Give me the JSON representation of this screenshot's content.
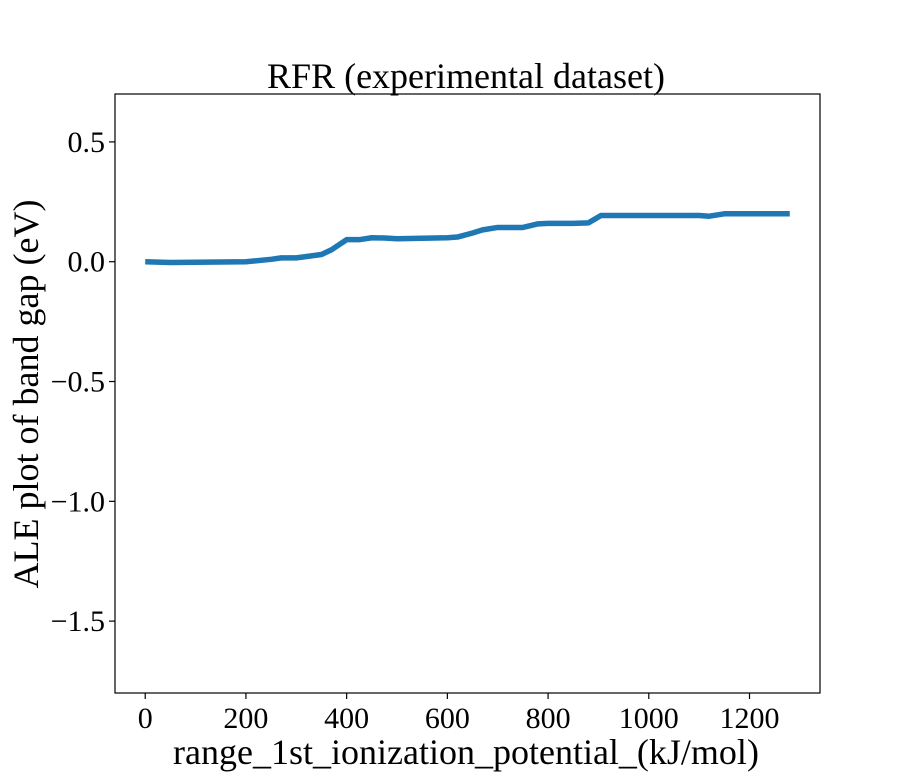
{
  "chart_data": {
    "type": "line",
    "title": "RFR (experimental dataset)",
    "xlabel": "range_1st_ionization_potential_(kJ/mol)",
    "ylabel": "ALE plot of band gap (eV)",
    "xlim": [
      -60,
      1340
    ],
    "ylim": [
      -1.8,
      0.7
    ],
    "x_ticks": [
      0,
      200,
      400,
      600,
      800,
      1000,
      1200
    ],
    "x_tick_labels": [
      "0",
      "200",
      "400",
      "600",
      "800",
      "1000",
      "1200"
    ],
    "y_ticks": [
      0.5,
      0.0,
      -0.5,
      -1.0,
      -1.5
    ],
    "y_tick_labels": [
      "0.5",
      "0.0",
      "−0.5",
      "−1.0",
      "−1.5"
    ],
    "grid": false,
    "series": [
      {
        "color": "#1f77b4",
        "x": [
          0,
          50,
          100,
          150,
          200,
          250,
          270,
          300,
          350,
          370,
          400,
          425,
          450,
          475,
          500,
          550,
          600,
          620,
          650,
          670,
          700,
          750,
          780,
          800,
          850,
          880,
          905,
          950,
          1000,
          1050,
          1100,
          1120,
          1150,
          1200,
          1280
        ],
        "y": [
          0.0,
          -0.003,
          -0.002,
          -0.001,
          0.0,
          0.01,
          0.016,
          0.016,
          0.03,
          0.05,
          0.092,
          0.092,
          0.1,
          0.099,
          0.096,
          0.098,
          0.1,
          0.103,
          0.12,
          0.133,
          0.143,
          0.143,
          0.158,
          0.16,
          0.16,
          0.162,
          0.193,
          0.193,
          0.193,
          0.193,
          0.193,
          0.19,
          0.2,
          0.2,
          0.2
        ]
      }
    ]
  }
}
